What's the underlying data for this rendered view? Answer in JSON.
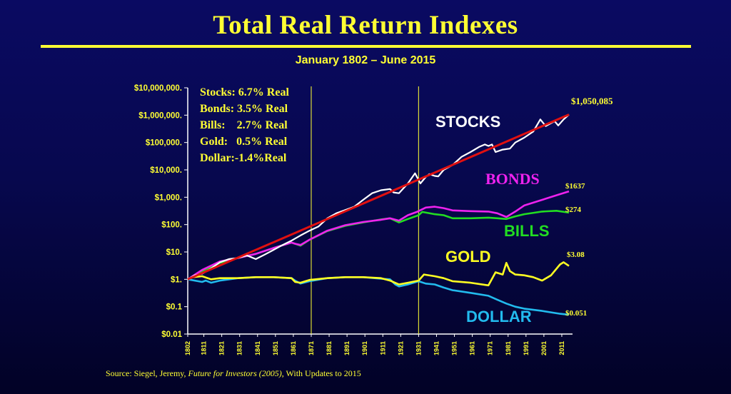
{
  "title": "Total Real Return Indexes",
  "subtitle": "January 1802 – June 2015",
  "source": {
    "prefix": "Source: Siegel, Jeremy, ",
    "book": "Future for Investors (2005)",
    "suffix": ", With Updates to 2015"
  },
  "stats": [
    "Stocks: 6.7% Real",
    "Bonds: 3.5% Real",
    "Bills:    2.7% Real",
    "Gold:   0.5% Real",
    "Dollar:-1.4%Real"
  ],
  "colors": {
    "stocks": "#ffffff",
    "trend": "#e01010",
    "bonds": "#ee22ee",
    "bills": "#22dd22",
    "gold": "#ffff22",
    "dollar": "#22bbee",
    "text": "#ffff33",
    "axis": "#ffffff"
  },
  "chart_data": {
    "type": "line",
    "title": "Total Real Return Indexes",
    "subtitle": "January 1802 – June 2015",
    "y_scale": "log",
    "ylim": [
      0.01,
      10000000
    ],
    "xlim": [
      1802,
      2015
    ],
    "y_ticks": [
      {
        "v": 10000000,
        "label": "$10,000,000."
      },
      {
        "v": 1000000,
        "label": "$1,000,000."
      },
      {
        "v": 100000,
        "label": "$100,000."
      },
      {
        "v": 10000,
        "label": "$10,000."
      },
      {
        "v": 1000,
        "label": "$1,000."
      },
      {
        "v": 100,
        "label": "$100."
      },
      {
        "v": 10,
        "label": "$10."
      },
      {
        "v": 1,
        "label": "$1."
      },
      {
        "v": 0.1,
        "label": "$0.1"
      },
      {
        "v": 0.01,
        "label": "$0.01"
      }
    ],
    "x_ticks": [
      1802,
      1811,
      1821,
      1831,
      1841,
      1851,
      1861,
      1871,
      1881,
      1891,
      1901,
      1911,
      1921,
      1931,
      1941,
      1951,
      1961,
      1971,
      1981,
      1991,
      2001,
      2011
    ],
    "vertical_markers": [
      1871,
      1931
    ],
    "series": [
      {
        "name": "STOCKS",
        "key": "stocks",
        "end_label": "$1,050,085",
        "points": [
          [
            1802,
            1
          ],
          [
            1806,
            1.4
          ],
          [
            1810,
            1.6
          ],
          [
            1815,
            2.5
          ],
          [
            1820,
            4.2
          ],
          [
            1825,
            5.5
          ],
          [
            1830,
            6
          ],
          [
            1835,
            7.5
          ],
          [
            1840,
            5.5
          ],
          [
            1845,
            8
          ],
          [
            1850,
            12
          ],
          [
            1855,
            18
          ],
          [
            1860,
            26
          ],
          [
            1865,
            40
          ],
          [
            1870,
            60
          ],
          [
            1875,
            85
          ],
          [
            1880,
            170
          ],
          [
            1885,
            260
          ],
          [
            1890,
            340
          ],
          [
            1895,
            450
          ],
          [
            1900,
            800
          ],
          [
            1905,
            1400
          ],
          [
            1910,
            1800
          ],
          [
            1915,
            2000
          ],
          [
            1917,
            1500
          ],
          [
            1920,
            1400
          ],
          [
            1925,
            3200
          ],
          [
            1929,
            7500
          ],
          [
            1932,
            3200
          ],
          [
            1935,
            5500
          ],
          [
            1937,
            7000
          ],
          [
            1940,
            6000
          ],
          [
            1942,
            5800
          ],
          [
            1945,
            10000
          ],
          [
            1950,
            15000
          ],
          [
            1955,
            30000
          ],
          [
            1960,
            45000
          ],
          [
            1965,
            70000
          ],
          [
            1968,
            85000
          ],
          [
            1970,
            75000
          ],
          [
            1972,
            85000
          ],
          [
            1974,
            45000
          ],
          [
            1978,
            55000
          ],
          [
            1982,
            60000
          ],
          [
            1985,
            100000
          ],
          [
            1990,
            150000
          ],
          [
            1995,
            250000
          ],
          [
            1999,
            700000
          ],
          [
            2002,
            400000
          ],
          [
            2007,
            600000
          ],
          [
            2009,
            420000
          ],
          [
            2012,
            700000
          ],
          [
            2015,
            1050085
          ]
        ]
      },
      {
        "name": "BONDS",
        "key": "bonds",
        "end_label": "$1637",
        "points": [
          [
            1802,
            1
          ],
          [
            1810,
            2.2
          ],
          [
            1820,
            4.5
          ],
          [
            1830,
            6
          ],
          [
            1840,
            8.5
          ],
          [
            1850,
            14
          ],
          [
            1860,
            22
          ],
          [
            1862,
            20
          ],
          [
            1865,
            18
          ],
          [
            1870,
            28
          ],
          [
            1880,
            60
          ],
          [
            1890,
            95
          ],
          [
            1900,
            125
          ],
          [
            1910,
            150
          ],
          [
            1915,
            170
          ],
          [
            1920,
            140
          ],
          [
            1925,
            220
          ],
          [
            1930,
            290
          ],
          [
            1935,
            420
          ],
          [
            1940,
            450
          ],
          [
            1945,
            400
          ],
          [
            1950,
            330
          ],
          [
            1960,
            310
          ],
          [
            1970,
            300
          ],
          [
            1975,
            260
          ],
          [
            1980,
            190
          ],
          [
            1985,
            300
          ],
          [
            1990,
            500
          ],
          [
            2000,
            800
          ],
          [
            2010,
            1300
          ],
          [
            2015,
            1637
          ]
        ]
      },
      {
        "name": "BILLS",
        "key": "bills",
        "end_label": "$274",
        "points": [
          [
            1802,
            1
          ],
          [
            1810,
            2
          ],
          [
            1820,
            4
          ],
          [
            1830,
            6
          ],
          [
            1840,
            8.5
          ],
          [
            1850,
            14
          ],
          [
            1860,
            22
          ],
          [
            1862,
            20
          ],
          [
            1865,
            17
          ],
          [
            1870,
            28
          ],
          [
            1880,
            58
          ],
          [
            1890,
            90
          ],
          [
            1900,
            120
          ],
          [
            1910,
            155
          ],
          [
            1915,
            170
          ],
          [
            1920,
            120
          ],
          [
            1925,
            160
          ],
          [
            1931,
            220
          ],
          [
            1933,
            290
          ],
          [
            1940,
            240
          ],
          [
            1945,
            220
          ],
          [
            1950,
            170
          ],
          [
            1960,
            170
          ],
          [
            1970,
            180
          ],
          [
            1975,
            170
          ],
          [
            1980,
            160
          ],
          [
            1985,
            200
          ],
          [
            1990,
            240
          ],
          [
            2000,
            300
          ],
          [
            2008,
            320
          ],
          [
            2015,
            274
          ]
        ]
      },
      {
        "name": "GOLD",
        "key": "gold",
        "end_label": "$3.08",
        "points": [
          [
            1802,
            1
          ],
          [
            1805,
            1.2
          ],
          [
            1810,
            1.3
          ],
          [
            1815,
            1
          ],
          [
            1820,
            1.1
          ],
          [
            1830,
            1.1
          ],
          [
            1840,
            1.2
          ],
          [
            1850,
            1.2
          ],
          [
            1860,
            1.1
          ],
          [
            1862,
            0.8
          ],
          [
            1865,
            0.75
          ],
          [
            1870,
            0.95
          ],
          [
            1880,
            1.1
          ],
          [
            1890,
            1.2
          ],
          [
            1900,
            1.2
          ],
          [
            1910,
            1.1
          ],
          [
            1915,
            0.9
          ],
          [
            1920,
            0.65
          ],
          [
            1925,
            0.75
          ],
          [
            1931,
            0.9
          ],
          [
            1934,
            1.5
          ],
          [
            1940,
            1.3
          ],
          [
            1945,
            1.1
          ],
          [
            1950,
            0.85
          ],
          [
            1960,
            0.75
          ],
          [
            1970,
            0.6
          ],
          [
            1974,
            1.8
          ],
          [
            1978,
            1.5
          ],
          [
            1980,
            4
          ],
          [
            1982,
            2
          ],
          [
            1985,
            1.5
          ],
          [
            1990,
            1.4
          ],
          [
            1995,
            1.2
          ],
          [
            2000,
            0.9
          ],
          [
            2005,
            1.4
          ],
          [
            2010,
            3.5
          ],
          [
            2012,
            4.2
          ],
          [
            2015,
            3.08
          ]
        ]
      },
      {
        "name": "DOLLAR",
        "key": "dollar",
        "end_label": "$0.051",
        "points": [
          [
            1802,
            1
          ],
          [
            1810,
            0.8
          ],
          [
            1812,
            0.9
          ],
          [
            1815,
            0.75
          ],
          [
            1820,
            0.9
          ],
          [
            1830,
            1.1
          ],
          [
            1840,
            1.2
          ],
          [
            1850,
            1.2
          ],
          [
            1860,
            1.1
          ],
          [
            1862,
            0.9
          ],
          [
            1865,
            0.7
          ],
          [
            1870,
            0.85
          ],
          [
            1880,
            1.1
          ],
          [
            1890,
            1.2
          ],
          [
            1900,
            1.2
          ],
          [
            1910,
            1.05
          ],
          [
            1915,
            1
          ],
          [
            1918,
            0.65
          ],
          [
            1920,
            0.55
          ],
          [
            1925,
            0.65
          ],
          [
            1931,
            0.85
          ],
          [
            1935,
            0.7
          ],
          [
            1940,
            0.65
          ],
          [
            1945,
            0.5
          ],
          [
            1950,
            0.4
          ],
          [
            1960,
            0.32
          ],
          [
            1970,
            0.25
          ],
          [
            1975,
            0.18
          ],
          [
            1980,
            0.13
          ],
          [
            1985,
            0.1
          ],
          [
            1990,
            0.085
          ],
          [
            2000,
            0.07
          ],
          [
            2010,
            0.055
          ],
          [
            2015,
            0.051
          ]
        ]
      }
    ],
    "trend": {
      "key": "trend",
      "from": [
        1802,
        1
      ],
      "to": [
        2015,
        1050085
      ]
    },
    "series_labels": [
      {
        "text": "STOCKS",
        "key": "stocks"
      },
      {
        "text": "BONDS",
        "key": "bonds"
      },
      {
        "text": "BILLS",
        "key": "bills"
      },
      {
        "text": "GOLD",
        "key": "gold"
      },
      {
        "text": "DOLLAR",
        "key": "dollar"
      }
    ]
  }
}
